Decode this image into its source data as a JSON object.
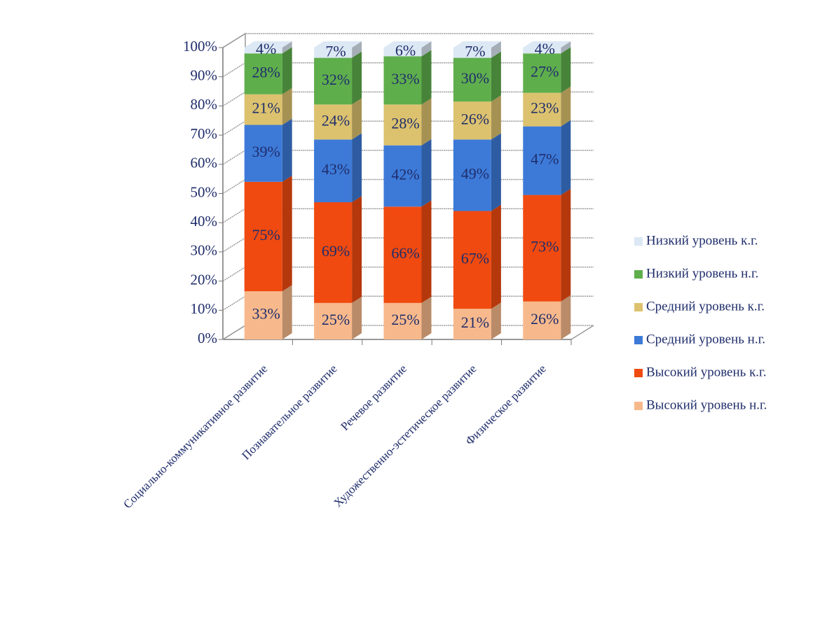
{
  "chart_data": {
    "type": "stacked_bar_3d",
    "categories": [
      "Социально-коммуникативное развитие",
      "Познавательное развитие",
      "Речевое развитие",
      "Художественно-эстетическое развитие",
      "Физическое развитие"
    ],
    "series": [
      {
        "name": "Высокий уровень н.г.",
        "color": "#f7b98c",
        "values": [
          33,
          25,
          25,
          21,
          26
        ],
        "value_labels": [
          "33%",
          "25%",
          "25%",
          "21%",
          "26%"
        ]
      },
      {
        "name": "Высокий уровень к.г.",
        "color": "#f04a10",
        "values": [
          75,
          69,
          66,
          67,
          73
        ],
        "value_labels": [
          "75%",
          "69%",
          "66%",
          "67%",
          "73%"
        ]
      },
      {
        "name": "Средний уровень н.г.",
        "color": "#3d7ad8",
        "values": [
          39,
          43,
          42,
          49,
          47
        ],
        "value_labels": [
          "39%",
          "43%",
          "42%",
          "49%",
          "47%"
        ]
      },
      {
        "name": "Средний уровень к.г.",
        "color": "#dcc26e",
        "values": [
          21,
          24,
          28,
          26,
          23
        ],
        "value_labels": [
          "21%",
          "24%",
          "28%",
          "26%",
          "23%"
        ]
      },
      {
        "name": "Низкий уровень н.г.",
        "color": "#5fae4c",
        "values": [
          28,
          32,
          33,
          30,
          27
        ],
        "value_labels": [
          "28%",
          "32%",
          "33%",
          "30%",
          "27%"
        ]
      },
      {
        "name": "Низкий уровень к.г.",
        "color": "#dce8f4",
        "values": [
          4,
          7,
          6,
          7,
          4
        ],
        "value_labels": [
          "4%",
          "7%",
          "6%",
          "7%",
          "4%"
        ]
      }
    ],
    "ylim": [
      0,
      100
    ],
    "yticks": [
      {
        "value": 0,
        "label": "0%"
      },
      {
        "value": 10,
        "label": "10%"
      },
      {
        "value": 20,
        "label": "20%"
      },
      {
        "value": 30,
        "label": "30%"
      },
      {
        "value": 40,
        "label": "40%"
      },
      {
        "value": 50,
        "label": "50%"
      },
      {
        "value": 60,
        "label": "60%"
      },
      {
        "value": 70,
        "label": "70%"
      },
      {
        "value": 80,
        "label": "80%"
      },
      {
        "value": 90,
        "label": "90%"
      },
      {
        "value": 100,
        "label": "100%"
      }
    ],
    "grid": true
  }
}
